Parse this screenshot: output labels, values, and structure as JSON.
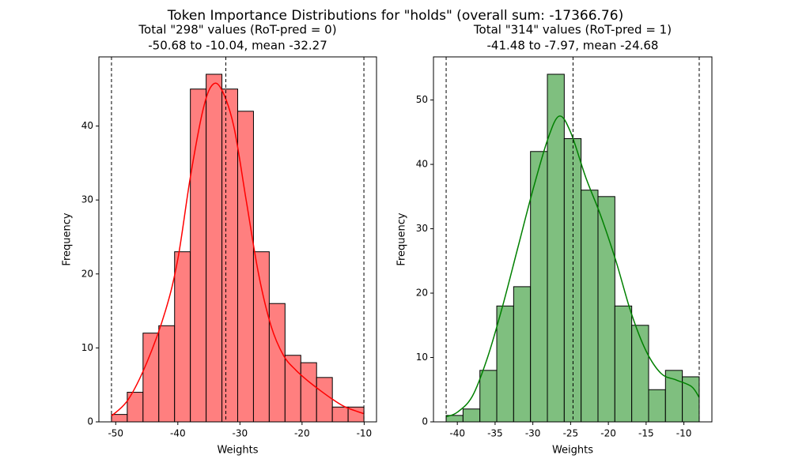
{
  "title": "Token Importance Distributions for \"holds\" (overall  sum: -17366.76)",
  "chart_data": [
    {
      "type": "histogram",
      "title": "Total \"298\" values (RoT-pred = 0)",
      "subtitle": "-50.68 to -10.04, mean -32.27",
      "xlabel": "Weights",
      "ylabel": "Frequency",
      "bins": [
        -50.68,
        -48.14,
        -45.6,
        -43.06,
        -40.52,
        -37.98,
        -35.44,
        -32.9,
        -30.36,
        -27.82,
        -25.28,
        -22.74,
        -20.2,
        -17.66,
        -15.12,
        -12.58,
        -10.04
      ],
      "counts": [
        1,
        4,
        12,
        13,
        23,
        45,
        47,
        45,
        42,
        23,
        16,
        9,
        8,
        6,
        2,
        2
      ],
      "color": "#ff7f7f",
      "edgecolor": "#000000",
      "kde": {
        "color": "#ff0000",
        "x": [
          -50.68,
          -48,
          -45,
          -42,
          -40,
          -38,
          -36,
          -34.5,
          -33,
          -31,
          -29,
          -27,
          -25,
          -23,
          -21,
          -19,
          -17,
          -15,
          -13,
          -10.04
        ],
        "values": [
          0.8,
          3,
          8,
          15,
          22,
          33,
          42,
          45.5,
          45,
          40,
          30,
          20,
          13,
          9,
          7,
          5.5,
          4.2,
          3,
          2,
          1.1
        ]
      },
      "vlines": [
        -50.68,
        -32.27,
        -10.04
      ],
      "xlim": [
        -52.71,
        -8.01
      ],
      "ylim": [
        0,
        49.35
      ],
      "xticks": [
        -50,
        -40,
        -30,
        -20,
        -10
      ],
      "yticks": [
        0,
        10,
        20,
        30,
        40
      ]
    },
    {
      "type": "histogram",
      "title": "Total \"314\" values (RoT-pred = 1)",
      "subtitle": "-41.48 to -7.97, mean -24.68",
      "xlabel": "Weights",
      "ylabel": "Frequency",
      "bins": [
        -41.48,
        -39.246,
        -37.012,
        -34.778,
        -32.544,
        -30.31,
        -28.076,
        -25.842,
        -23.608,
        -21.374,
        -19.14,
        -16.906,
        -14.672,
        -12.438,
        -10.204,
        -7.97
      ],
      "counts": [
        1,
        2,
        8,
        18,
        21,
        42,
        54,
        44,
        36,
        35,
        18,
        15,
        5,
        8,
        7
      ],
      "color": "#7fbf7f",
      "edgecolor": "#000000",
      "kde": {
        "color": "#008000",
        "x": [
          -41.48,
          -40,
          -38,
          -36,
          -34,
          -32,
          -30,
          -28,
          -26.5,
          -25,
          -23,
          -21,
          -19,
          -17,
          -15,
          -13,
          -11,
          -9,
          -7.97
        ],
        "values": [
          0.8,
          1.5,
          4,
          10,
          18,
          27,
          36,
          44,
          47.5,
          45,
          38,
          32,
          25,
          17,
          11,
          7.5,
          6.5,
          5.5,
          3.8
        ]
      },
      "vlines": [
        -41.48,
        -24.68,
        -7.97
      ],
      "xlim": [
        -43.16,
        -6.29
      ],
      "ylim": [
        0,
        56.7
      ],
      "xticks": [
        -40,
        -35,
        -30,
        -25,
        -20,
        -15,
        -10
      ],
      "yticks": [
        0,
        10,
        20,
        30,
        40,
        50
      ]
    }
  ]
}
